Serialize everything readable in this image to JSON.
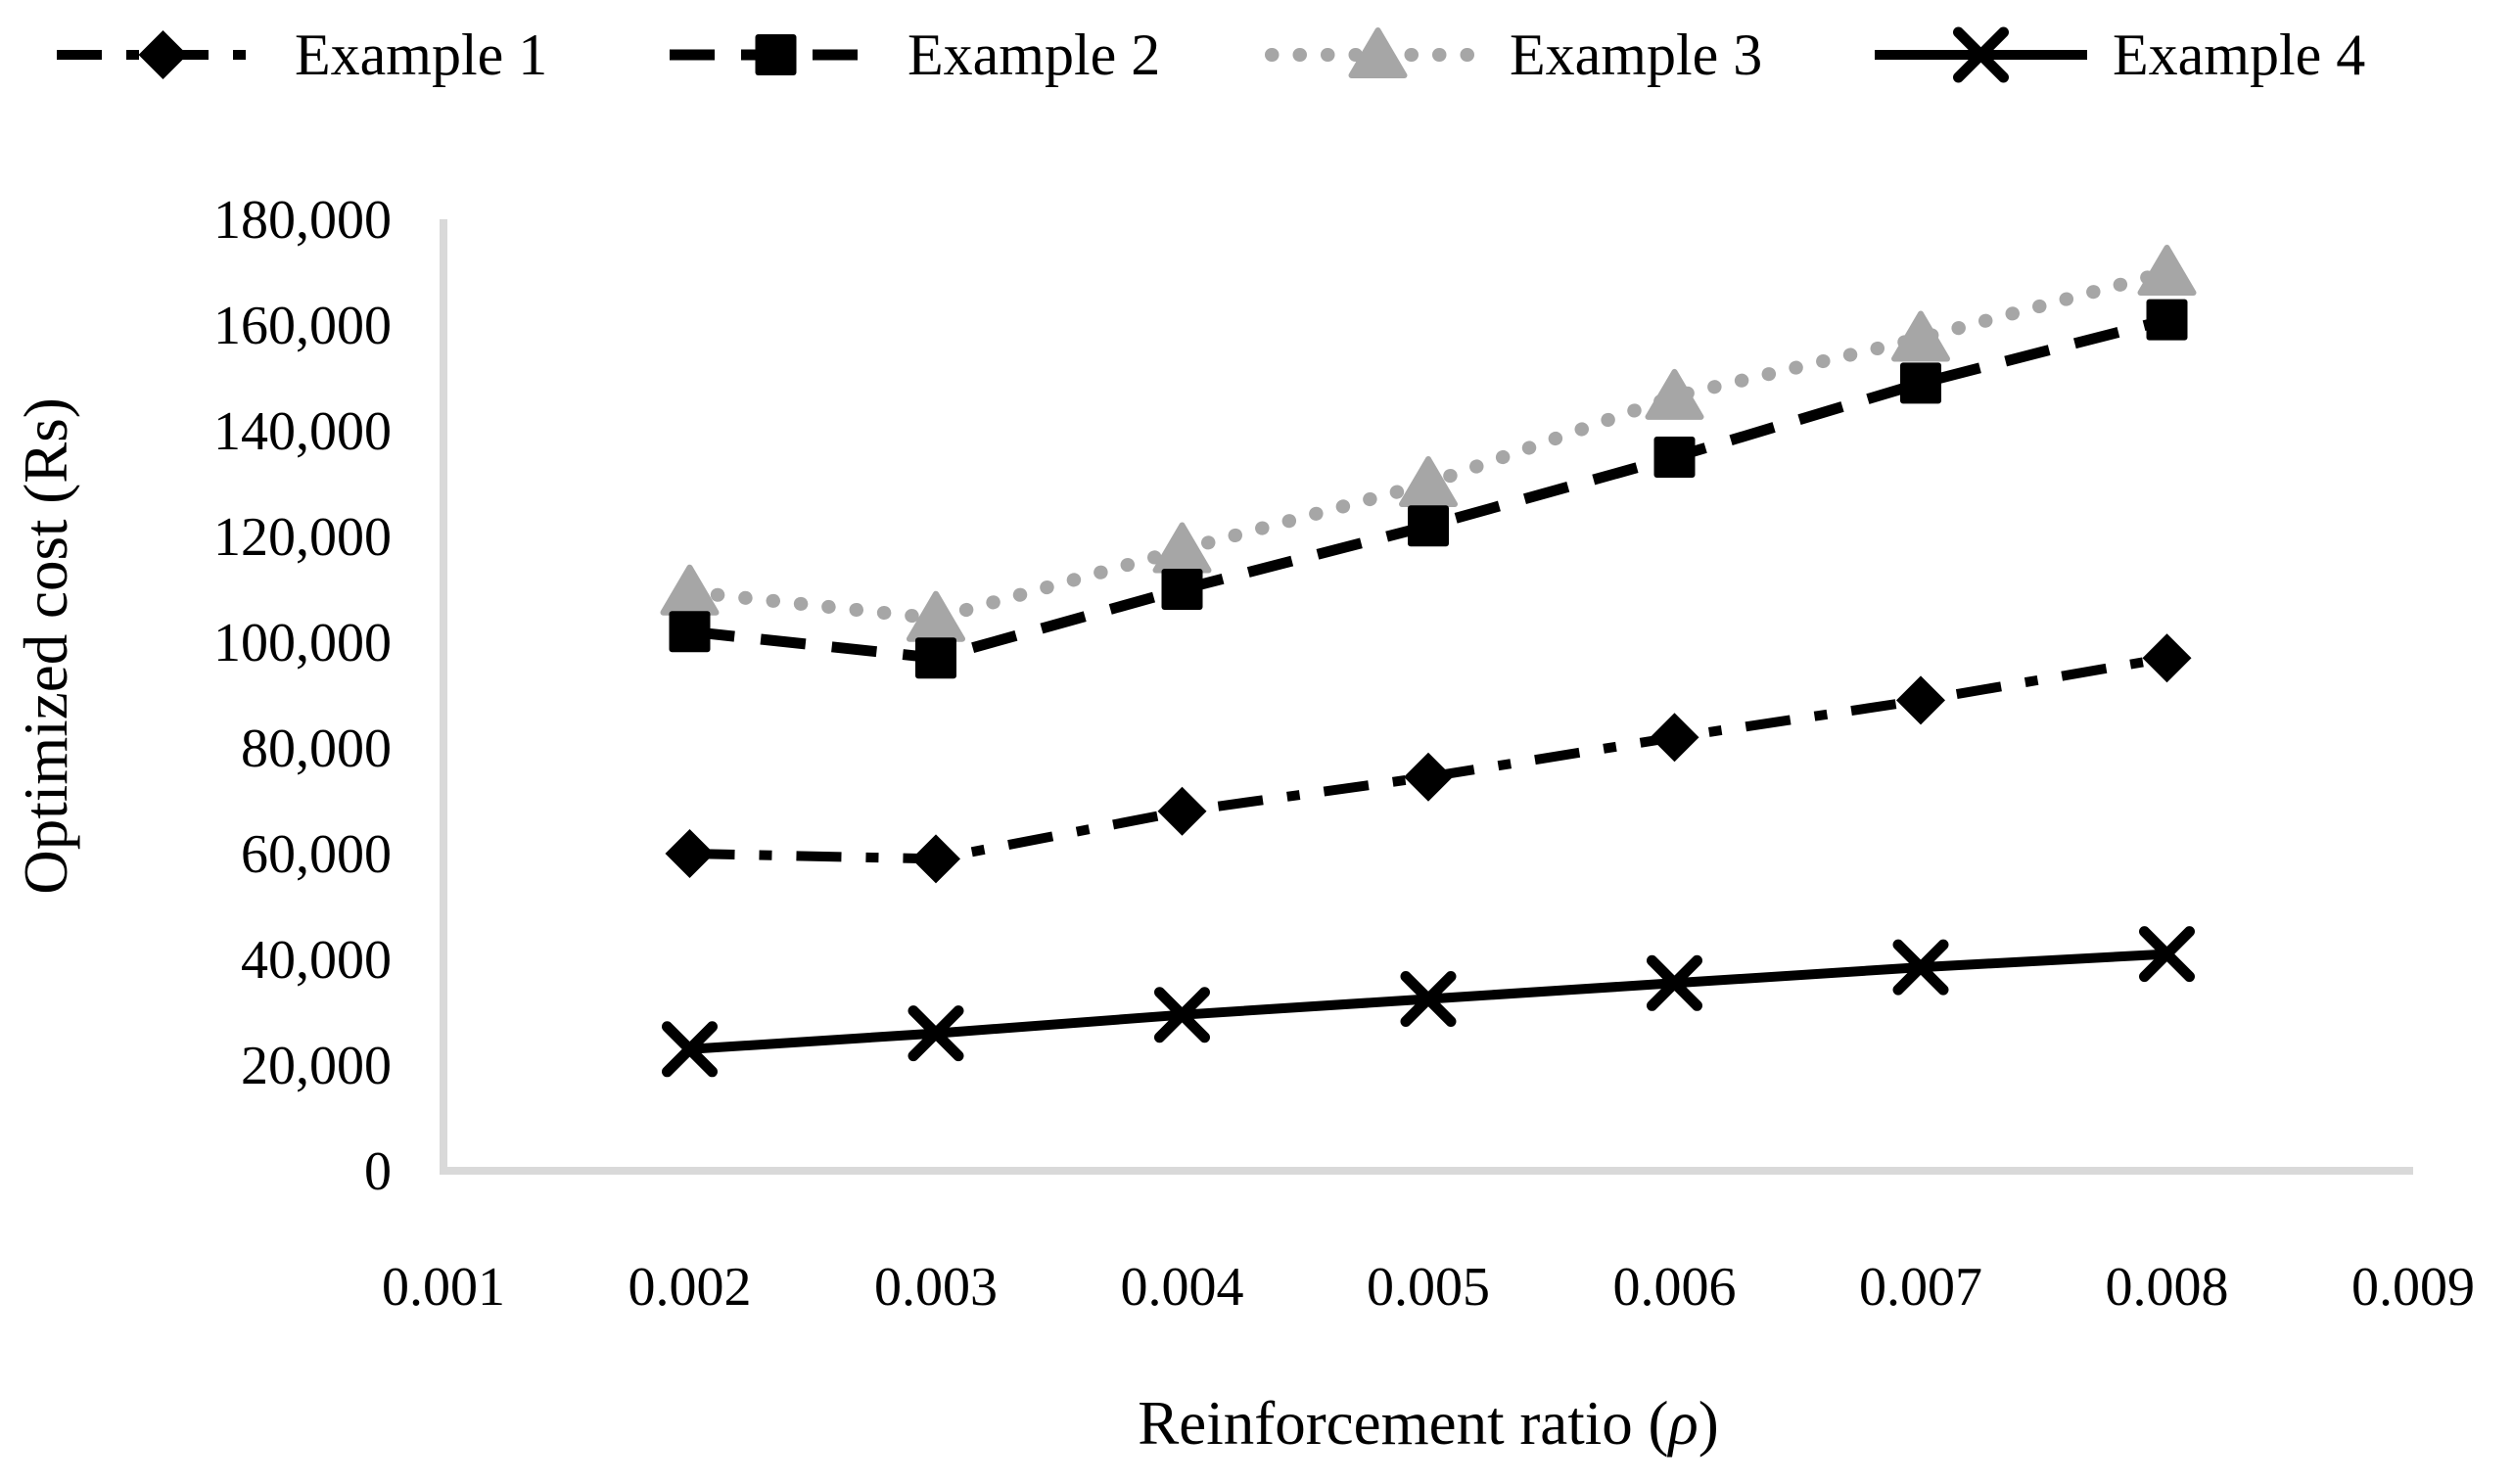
{
  "chart_data": {
    "type": "line",
    "title": "",
    "xlabel": "Reinforcement ratio (ρ)",
    "xlabel_parts": {
      "prefix": "Reinforcement ratio (",
      "symbol": "ρ",
      "suffix": ")"
    },
    "ylabel": "Optimized cost (Rs)",
    "x_tick_labels": [
      "0.001",
      "0.002",
      "0.003",
      "0.004",
      "0.005",
      "0.006",
      "0.007",
      "0.008",
      "0.009"
    ],
    "y_tick_labels": [
      "0",
      "20,000",
      "40,000",
      "60,000",
      "80,000",
      "100,000",
      "120,000",
      "140,000",
      "160,000",
      "180,000"
    ],
    "ylim": [
      0,
      180000
    ],
    "y_tick_step": 20000,
    "xlim_categories": [
      "0.001",
      "0.009"
    ],
    "grid": false,
    "legend_position": "top",
    "axis_color": "#d9d9d9",
    "text_color": "#000000",
    "background_color": "#ffffff",
    "categories": [
      "0.002",
      "0.003",
      "0.004",
      "0.005",
      "0.006",
      "0.007",
      "0.008"
    ],
    "series": [
      {
        "name": "Example 1",
        "color": "#000000",
        "marker": "diamond",
        "line_style": "dash-dot",
        "values": [
          60000,
          59000,
          68000,
          74500,
          82000,
          89000,
          97000
        ]
      },
      {
        "name": "Example 2",
        "color": "#000000",
        "marker": "square",
        "line_style": "dashed",
        "values": [
          102000,
          97000,
          110000,
          122000,
          135000,
          149000,
          161000
        ]
      },
      {
        "name": "Example 3",
        "color": "#a6a6a6",
        "marker": "triangle",
        "line_style": "dotted",
        "values": [
          109500,
          104500,
          117500,
          130000,
          146500,
          157500,
          170000
        ]
      },
      {
        "name": "Example 4",
        "color": "#000000",
        "marker": "x",
        "line_style": "solid",
        "values": [
          23000,
          26000,
          29500,
          32500,
          35500,
          38500,
          41000
        ]
      }
    ]
  }
}
